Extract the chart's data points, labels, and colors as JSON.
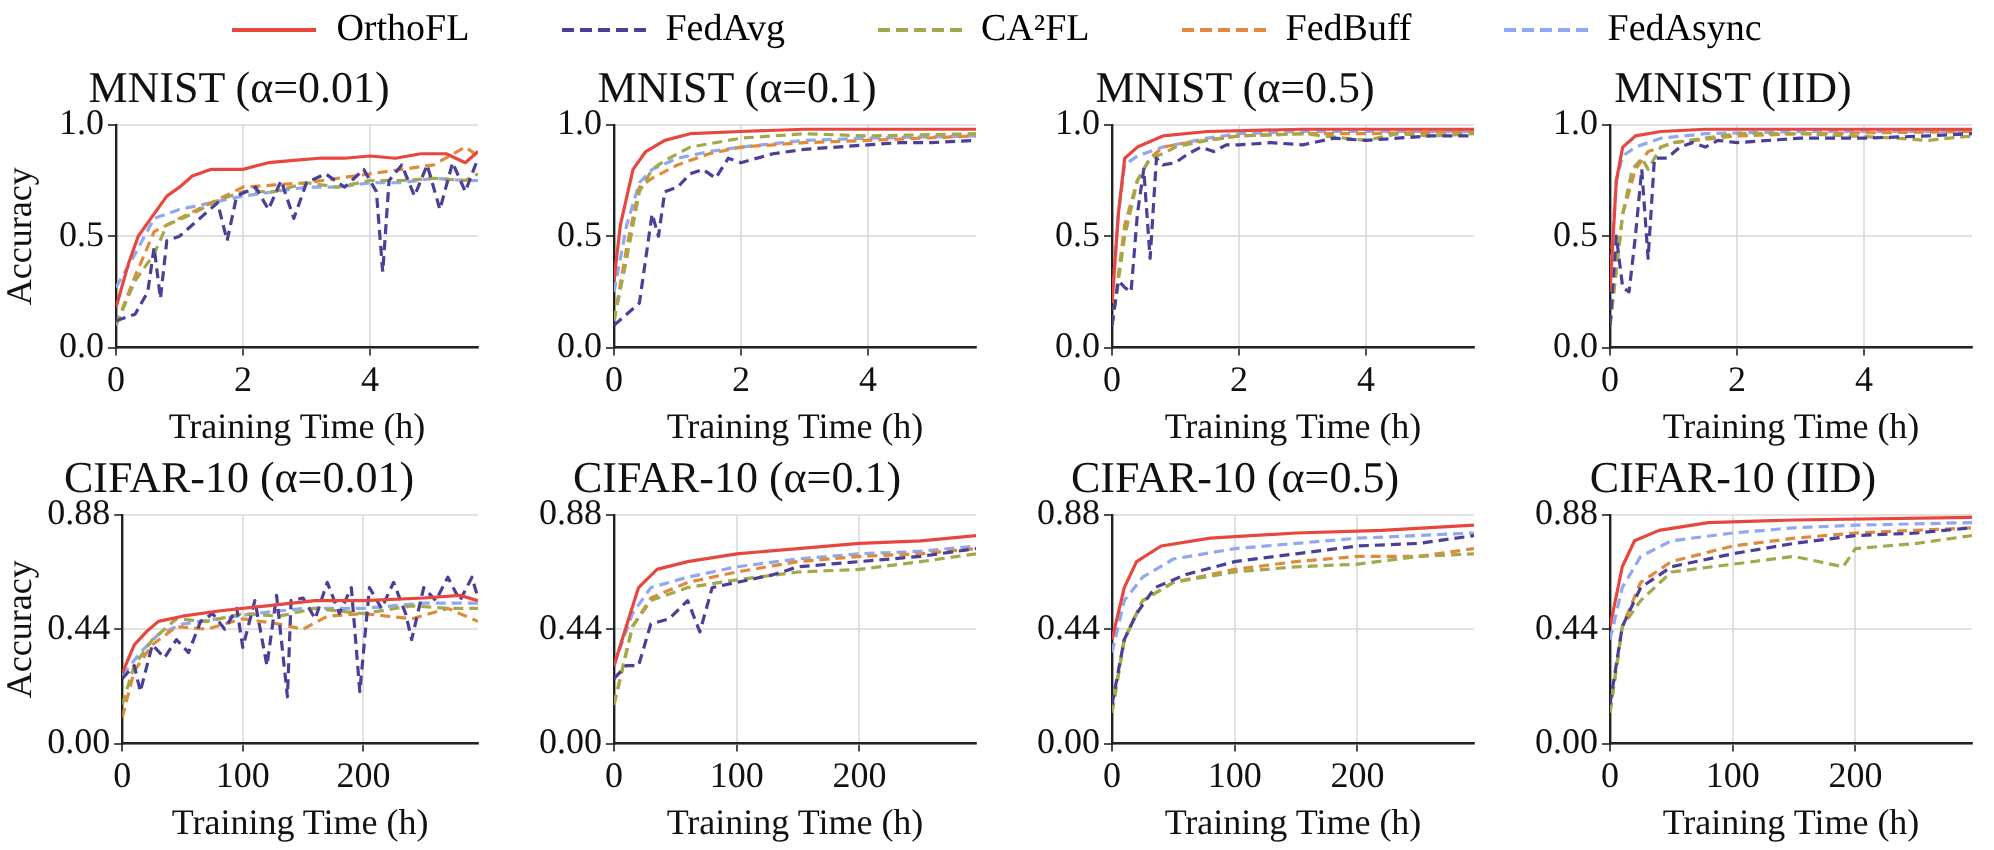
{
  "chart_data": [
    {
      "type": "line",
      "title": "MNIST (α=0.01)",
      "xlabel": "Training Time (h)",
      "ylabel": "Accuracy",
      "xlim": [
        0,
        5.7
      ],
      "xticks": [
        0,
        2,
        4
      ],
      "ylim": [
        0,
        1
      ],
      "yticks": [
        {
          "value": 0,
          "label": "0.0"
        },
        {
          "value": 0.5,
          "label": "0.5"
        },
        {
          "value": 1,
          "label": "1.0"
        }
      ],
      "grid": true,
      "legend": "top",
      "marker": "none",
      "series": [
        {
          "name": "OrthoFL",
          "color": "#e8473f",
          "line_style": "solid",
          "x": [
            0,
            0.2,
            0.35,
            0.6,
            0.8,
            1.0,
            1.2,
            1.5,
            2,
            2.4,
            2.8,
            3.2,
            3.6,
            4.0,
            4.4,
            4.8,
            5.2,
            5.5,
            5.7
          ],
          "values": [
            0.18,
            0.38,
            0.5,
            0.6,
            0.68,
            0.72,
            0.77,
            0.8,
            0.8,
            0.83,
            0.84,
            0.85,
            0.85,
            0.86,
            0.85,
            0.87,
            0.87,
            0.83,
            0.88
          ]
        },
        {
          "name": "FedAvg",
          "color": "#4b3f98",
          "line_style": "dashed",
          "x": [
            0,
            0.3,
            0.5,
            0.6,
            0.7,
            0.8,
            1.0,
            1.2,
            1.4,
            1.6,
            1.75,
            1.9,
            2.2,
            2.4,
            2.6,
            2.8,
            3.0,
            3.3,
            3.6,
            3.9,
            4.1,
            4.2,
            4.3,
            4.5,
            4.7,
            4.9,
            5.1,
            5.3,
            5.5,
            5.7
          ],
          "values": [
            0.12,
            0.15,
            0.25,
            0.45,
            0.22,
            0.48,
            0.5,
            0.55,
            0.6,
            0.65,
            0.48,
            0.68,
            0.72,
            0.62,
            0.75,
            0.58,
            0.74,
            0.78,
            0.72,
            0.8,
            0.7,
            0.34,
            0.75,
            0.82,
            0.68,
            0.82,
            0.62,
            0.83,
            0.7,
            0.85
          ]
        },
        {
          "name": "CA²FL",
          "color": "#a3a84a",
          "line_style": "dashed",
          "x": [
            0,
            0.3,
            0.6,
            0.8,
            1.2,
            1.6,
            2,
            2.5,
            3,
            3.5,
            4,
            4.5,
            5,
            5.5,
            5.7
          ],
          "values": [
            0.1,
            0.3,
            0.42,
            0.55,
            0.6,
            0.66,
            0.7,
            0.7,
            0.74,
            0.72,
            0.75,
            0.75,
            0.76,
            0.75,
            0.78
          ]
        },
        {
          "name": "FedBuff",
          "color": "#e08a3c",
          "line_style": "dashed",
          "x": [
            0,
            0.3,
            0.6,
            1,
            1.5,
            2,
            2.5,
            3,
            3.5,
            4,
            4.5,
            5,
            5.5,
            5.7
          ],
          "values": [
            0.1,
            0.32,
            0.52,
            0.58,
            0.65,
            0.72,
            0.73,
            0.74,
            0.76,
            0.78,
            0.8,
            0.82,
            0.9,
            0.86
          ]
        },
        {
          "name": "FedAsync",
          "color": "#8fa8f0",
          "line_style": "dashed",
          "x": [
            0,
            0.3,
            0.6,
            1,
            1.5,
            2,
            2.5,
            3,
            3.5,
            4,
            4.5,
            5,
            5.5,
            5.7
          ],
          "values": [
            0.27,
            0.42,
            0.58,
            0.62,
            0.65,
            0.68,
            0.7,
            0.72,
            0.72,
            0.74,
            0.74,
            0.76,
            0.75,
            0.75
          ]
        }
      ]
    },
    {
      "type": "line",
      "title": "MNIST (α=0.1)",
      "xlabel": "Training Time (h)",
      "xlim": [
        0,
        5.7
      ],
      "xticks": [
        0,
        2,
        4
      ],
      "ylim": [
        0,
        1
      ],
      "yticks": [
        {
          "value": 0,
          "label": "0.0"
        },
        {
          "value": 0.5,
          "label": "0.5"
        },
        {
          "value": 1,
          "label": "1.0"
        }
      ],
      "grid": true,
      "marker": "none",
      "series": [
        {
          "color": "#e8473f",
          "line_style": "solid",
          "x": [
            0,
            0.1,
            0.3,
            0.5,
            0.8,
            1.2,
            2,
            3,
            4,
            5.7
          ],
          "values": [
            0.3,
            0.55,
            0.8,
            0.88,
            0.93,
            0.96,
            0.97,
            0.98,
            0.98,
            0.98
          ]
        },
        {
          "color": "#4b3f98",
          "line_style": "dashed",
          "x": [
            0,
            0.2,
            0.4,
            0.5,
            0.6,
            0.7,
            0.8,
            1.0,
            1.2,
            1.4,
            1.6,
            1.8,
            2,
            2.5,
            3,
            3.5,
            4,
            4.5,
            5,
            5.7
          ],
          "values": [
            0.1,
            0.15,
            0.2,
            0.4,
            0.6,
            0.5,
            0.7,
            0.72,
            0.78,
            0.8,
            0.76,
            0.85,
            0.83,
            0.87,
            0.89,
            0.9,
            0.91,
            0.92,
            0.92,
            0.93
          ]
        },
        {
          "color": "#a3a84a",
          "line_style": "dashed",
          "x": [
            0,
            0.2,
            0.4,
            0.6,
            0.8,
            1.2,
            2,
            3,
            4,
            5.7
          ],
          "values": [
            0.12,
            0.4,
            0.7,
            0.8,
            0.84,
            0.9,
            0.94,
            0.96,
            0.95,
            0.96
          ]
        },
        {
          "color": "#e08a3c",
          "line_style": "dashed",
          "x": [
            0,
            0.2,
            0.4,
            0.6,
            1,
            1.5,
            2,
            3,
            4,
            5.7
          ],
          "values": [
            0.12,
            0.45,
            0.72,
            0.76,
            0.82,
            0.87,
            0.9,
            0.92,
            0.93,
            0.95
          ]
        },
        {
          "color": "#8fa8f0",
          "line_style": "dashed",
          "x": [
            0,
            0.2,
            0.4,
            0.6,
            1,
            1.5,
            2,
            3,
            4,
            5.7
          ],
          "values": [
            0.25,
            0.55,
            0.74,
            0.8,
            0.85,
            0.88,
            0.9,
            0.93,
            0.94,
            0.95
          ]
        }
      ]
    },
    {
      "type": "line",
      "title": "MNIST (α=0.5)",
      "xlabel": "Training Time (h)",
      "xlim": [
        0,
        5.7
      ],
      "xticks": [
        0,
        2,
        4
      ],
      "ylim": [
        0,
        1
      ],
      "yticks": [
        {
          "value": 0,
          "label": "0.0"
        },
        {
          "value": 0.5,
          "label": "0.5"
        },
        {
          "value": 1,
          "label": "1.0"
        }
      ],
      "grid": true,
      "marker": "none",
      "series": [
        {
          "color": "#e8473f",
          "line_style": "solid",
          "x": [
            0,
            0.1,
            0.2,
            0.4,
            0.8,
            1.5,
            3,
            5.7
          ],
          "values": [
            0.2,
            0.6,
            0.85,
            0.9,
            0.95,
            0.97,
            0.98,
            0.98
          ]
        },
        {
          "color": "#4b3f98",
          "line_style": "dashed",
          "x": [
            0,
            0.1,
            0.2,
            0.3,
            0.4,
            0.5,
            0.6,
            0.7,
            0.8,
            1,
            1.2,
            1.4,
            1.6,
            1.8,
            2,
            2.5,
            3,
            3.5,
            4,
            5,
            5.7
          ],
          "values": [
            0.1,
            0.3,
            0.27,
            0.25,
            0.6,
            0.8,
            0.4,
            0.85,
            0.82,
            0.83,
            0.87,
            0.9,
            0.88,
            0.91,
            0.91,
            0.92,
            0.91,
            0.94,
            0.93,
            0.95,
            0.95
          ]
        },
        {
          "color": "#a3a84a",
          "line_style": "dashed",
          "x": [
            0,
            0.2,
            0.4,
            0.6,
            0.8,
            1,
            1.5,
            2,
            3,
            4,
            4.5,
            5,
            5.7
          ],
          "values": [
            0.1,
            0.5,
            0.75,
            0.85,
            0.87,
            0.9,
            0.93,
            0.95,
            0.96,
            0.93,
            0.96,
            0.95,
            0.96
          ]
        },
        {
          "color": "#e08a3c",
          "line_style": "dashed",
          "x": [
            0,
            0.2,
            0.4,
            0.6,
            0.8,
            1.2,
            2,
            3,
            4,
            5.7
          ],
          "values": [
            0.1,
            0.55,
            0.75,
            0.85,
            0.9,
            0.92,
            0.95,
            0.96,
            0.96,
            0.97
          ]
        },
        {
          "color": "#8fa8f0",
          "line_style": "dashed",
          "x": [
            0,
            0.1,
            0.2,
            0.4,
            0.8,
            1.5,
            2,
            3,
            5.7
          ],
          "values": [
            0.2,
            0.6,
            0.82,
            0.86,
            0.9,
            0.94,
            0.96,
            0.97,
            0.97
          ]
        }
      ]
    },
    {
      "type": "line",
      "title": "MNIST (IID)",
      "xlabel": "Training Time (h)",
      "xlim": [
        0,
        5.7
      ],
      "xticks": [
        0,
        2,
        4
      ],
      "ylim": [
        0,
        1
      ],
      "yticks": [
        {
          "value": 0,
          "label": "0.0"
        },
        {
          "value": 0.5,
          "label": "0.5"
        },
        {
          "value": 1,
          "label": "1.0"
        }
      ],
      "grid": true,
      "marker": "none",
      "series": [
        {
          "color": "#e8473f",
          "line_style": "solid",
          "x": [
            0,
            0.1,
            0.2,
            0.4,
            0.8,
            1.5,
            5.7
          ],
          "values": [
            0.25,
            0.75,
            0.9,
            0.95,
            0.97,
            0.98,
            0.98
          ]
        },
        {
          "color": "#4b3f98",
          "line_style": "dashed",
          "x": [
            0,
            0.1,
            0.2,
            0.3,
            0.4,
            0.5,
            0.6,
            0.7,
            0.9,
            1.1,
            1.3,
            1.5,
            1.7,
            2,
            3,
            4,
            5,
            5.7
          ],
          "values": [
            0.1,
            0.5,
            0.27,
            0.25,
            0.5,
            0.8,
            0.4,
            0.85,
            0.85,
            0.9,
            0.92,
            0.9,
            0.93,
            0.92,
            0.94,
            0.94,
            0.95,
            0.96
          ]
        },
        {
          "color": "#a3a84a",
          "line_style": "dashed",
          "x": [
            0,
            0.2,
            0.35,
            0.5,
            0.6,
            0.8,
            1,
            1.5,
            2,
            3,
            4.5,
            5,
            5.7
          ],
          "values": [
            0.1,
            0.6,
            0.8,
            0.85,
            0.8,
            0.9,
            0.92,
            0.94,
            0.96,
            0.96,
            0.94,
            0.93,
            0.95
          ]
        },
        {
          "color": "#e08a3c",
          "line_style": "dashed",
          "x": [
            0,
            0.2,
            0.4,
            0.6,
            1,
            2,
            3,
            5.7
          ],
          "values": [
            0.1,
            0.6,
            0.8,
            0.88,
            0.92,
            0.95,
            0.96,
            0.97
          ]
        },
        {
          "color": "#8fa8f0",
          "line_style": "dashed",
          "x": [
            0,
            0.1,
            0.2,
            0.4,
            0.8,
            1.5,
            3,
            5.7
          ],
          "values": [
            0.3,
            0.75,
            0.86,
            0.9,
            0.94,
            0.96,
            0.97,
            0.97
          ]
        }
      ]
    },
    {
      "type": "line",
      "title": "CIFAR-10 (α=0.01)",
      "xlabel": "Training Time (h)",
      "ylabel": "Accuracy",
      "xlim": [
        0,
        295
      ],
      "xticks": [
        0,
        100,
        200
      ],
      "ylim": [
        0,
        0.88
      ],
      "yticks": [
        {
          "value": 0,
          "label": "0.00"
        },
        {
          "value": 0.44,
          "label": "0.44"
        },
        {
          "value": 0.88,
          "label": "0.88"
        }
      ],
      "grid": true,
      "marker": "none",
      "series": [
        {
          "color": "#e8473f",
          "line_style": "solid",
          "x": [
            0,
            10,
            20,
            30,
            50,
            80,
            120,
            160,
            200,
            250,
            280,
            295
          ],
          "values": [
            0.27,
            0.38,
            0.43,
            0.47,
            0.49,
            0.51,
            0.53,
            0.55,
            0.55,
            0.56,
            0.57,
            0.55
          ]
        },
        {
          "color": "#4b3f98",
          "line_style": "dashed",
          "x": [
            0,
            10,
            15,
            25,
            35,
            45,
            55,
            65,
            75,
            85,
            95,
            100,
            110,
            120,
            128,
            137,
            140,
            150,
            160,
            170,
            180,
            190,
            197,
            205,
            215,
            225,
            235,
            240,
            250,
            260,
            270,
            280,
            290,
            295
          ],
          "values": [
            0.25,
            0.3,
            0.2,
            0.38,
            0.33,
            0.4,
            0.35,
            0.47,
            0.5,
            0.44,
            0.52,
            0.37,
            0.55,
            0.3,
            0.57,
            0.18,
            0.55,
            0.56,
            0.48,
            0.62,
            0.5,
            0.6,
            0.2,
            0.6,
            0.52,
            0.62,
            0.5,
            0.4,
            0.6,
            0.55,
            0.64,
            0.55,
            0.64,
            0.56
          ]
        },
        {
          "color": "#a3a84a",
          "line_style": "dashed",
          "x": [
            0,
            10,
            25,
            45,
            70,
            100,
            130,
            160,
            200,
            240,
            270,
            295
          ],
          "values": [
            0.15,
            0.3,
            0.4,
            0.48,
            0.47,
            0.5,
            0.49,
            0.52,
            0.5,
            0.53,
            0.52,
            0.52
          ]
        },
        {
          "color": "#e08a3c",
          "line_style": "dashed",
          "x": [
            0,
            10,
            25,
            45,
            70,
            100,
            130,
            150,
            170,
            200,
            240,
            270,
            295
          ],
          "values": [
            0.1,
            0.28,
            0.38,
            0.45,
            0.44,
            0.48,
            0.46,
            0.44,
            0.49,
            0.5,
            0.48,
            0.52,
            0.47
          ]
        },
        {
          "color": "#8fa8f0",
          "line_style": "dashed",
          "x": [
            0,
            15,
            30,
            50,
            80,
            110,
            150,
            200,
            250,
            295
          ],
          "values": [
            0.26,
            0.35,
            0.42,
            0.46,
            0.48,
            0.5,
            0.52,
            0.52,
            0.54,
            0.54
          ]
        }
      ]
    },
    {
      "type": "line",
      "title": "CIFAR-10 (α=0.1)",
      "xlabel": "Training Time (h)",
      "xlim": [
        0,
        295
      ],
      "xticks": [
        0,
        100,
        200
      ],
      "ylim": [
        0,
        0.88
      ],
      "yticks": [
        {
          "value": 0,
          "label": "0.00"
        },
        {
          "value": 0.44,
          "label": "0.44"
        },
        {
          "value": 0.88,
          "label": "0.88"
        }
      ],
      "grid": true,
      "marker": "none",
      "series": [
        {
          "color": "#e8473f",
          "line_style": "solid",
          "x": [
            0,
            10,
            20,
            35,
            60,
            100,
            150,
            200,
            250,
            295
          ],
          "values": [
            0.3,
            0.45,
            0.6,
            0.67,
            0.7,
            0.73,
            0.75,
            0.77,
            0.78,
            0.8
          ]
        },
        {
          "color": "#4b3f98",
          "line_style": "dashed",
          "x": [
            0,
            10,
            20,
            30,
            45,
            60,
            70,
            80,
            100,
            130,
            150,
            200,
            250,
            295
          ],
          "values": [
            0.25,
            0.3,
            0.3,
            0.46,
            0.48,
            0.55,
            0.43,
            0.6,
            0.62,
            0.65,
            0.68,
            0.7,
            0.72,
            0.75
          ]
        },
        {
          "color": "#a3a84a",
          "line_style": "dashed",
          "x": [
            0,
            15,
            30,
            60,
            100,
            150,
            200,
            250,
            295
          ],
          "values": [
            0.15,
            0.45,
            0.55,
            0.6,
            0.63,
            0.66,
            0.67,
            0.7,
            0.73
          ]
        },
        {
          "color": "#e08a3c",
          "line_style": "dashed",
          "x": [
            0,
            15,
            30,
            60,
            100,
            150,
            200,
            250,
            295
          ],
          "values": [
            0.15,
            0.45,
            0.56,
            0.62,
            0.66,
            0.7,
            0.72,
            0.73,
            0.75
          ]
        },
        {
          "color": "#8fa8f0",
          "line_style": "dashed",
          "x": [
            0,
            15,
            30,
            60,
            100,
            150,
            200,
            250,
            295
          ],
          "values": [
            0.3,
            0.5,
            0.6,
            0.64,
            0.68,
            0.71,
            0.73,
            0.74,
            0.76
          ]
        }
      ]
    },
    {
      "type": "line",
      "title": "CIFAR-10 (α=0.5)",
      "xlabel": "Training Time (h)",
      "xlim": [
        0,
        295
      ],
      "xticks": [
        0,
        100,
        200
      ],
      "ylim": [
        0,
        0.88
      ],
      "yticks": [
        {
          "value": 0,
          "label": "0.00"
        },
        {
          "value": 0.44,
          "label": "0.44"
        },
        {
          "value": 0.88,
          "label": "0.88"
        }
      ],
      "grid": true,
      "marker": "none",
      "series": [
        {
          "color": "#e8473f",
          "line_style": "solid",
          "x": [
            0,
            10,
            20,
            40,
            80,
            150,
            220,
            295
          ],
          "values": [
            0.4,
            0.6,
            0.7,
            0.76,
            0.79,
            0.81,
            0.82,
            0.84
          ]
        },
        {
          "color": "#4b3f98",
          "line_style": "dashed",
          "x": [
            0,
            10,
            20,
            35,
            60,
            100,
            150,
            200,
            250,
            295
          ],
          "values": [
            0.15,
            0.4,
            0.5,
            0.6,
            0.65,
            0.7,
            0.73,
            0.76,
            0.77,
            0.8
          ]
        },
        {
          "color": "#a3a84a",
          "line_style": "dashed",
          "x": [
            0,
            10,
            25,
            50,
            100,
            150,
            200,
            250,
            295
          ],
          "values": [
            0.12,
            0.4,
            0.55,
            0.62,
            0.66,
            0.68,
            0.69,
            0.72,
            0.73
          ]
        },
        {
          "color": "#e08a3c",
          "line_style": "dashed",
          "x": [
            0,
            10,
            25,
            50,
            100,
            150,
            200,
            250,
            295
          ],
          "values": [
            0.12,
            0.4,
            0.55,
            0.62,
            0.67,
            0.7,
            0.72,
            0.72,
            0.75
          ]
        },
        {
          "color": "#8fa8f0",
          "line_style": "dashed",
          "x": [
            0,
            10,
            25,
            50,
            100,
            150,
            200,
            295
          ],
          "values": [
            0.35,
            0.55,
            0.64,
            0.71,
            0.75,
            0.77,
            0.79,
            0.81
          ]
        }
      ]
    },
    {
      "type": "line",
      "title": "CIFAR-10 (IID)",
      "xlabel": "Training Time (h)",
      "xlim": [
        0,
        295
      ],
      "xticks": [
        0,
        100,
        200
      ],
      "ylim": [
        0,
        0.88
      ],
      "yticks": [
        {
          "value": 0,
          "label": "0.00"
        },
        {
          "value": 0.44,
          "label": "0.44"
        },
        {
          "value": 0.88,
          "label": "0.88"
        }
      ],
      "grid": true,
      "marker": "none",
      "series": [
        {
          "color": "#e8473f",
          "line_style": "solid",
          "x": [
            0,
            10,
            20,
            40,
            80,
            150,
            295
          ],
          "values": [
            0.45,
            0.68,
            0.78,
            0.82,
            0.85,
            0.86,
            0.87
          ]
        },
        {
          "color": "#4b3f98",
          "line_style": "dashed",
          "x": [
            0,
            10,
            25,
            50,
            100,
            150,
            200,
            250,
            295
          ],
          "values": [
            0.15,
            0.45,
            0.6,
            0.68,
            0.73,
            0.77,
            0.8,
            0.81,
            0.83
          ]
        },
        {
          "color": "#a3a84a",
          "line_style": "dashed",
          "x": [
            0,
            10,
            25,
            50,
            100,
            150,
            190,
            200,
            250,
            295
          ],
          "values": [
            0.12,
            0.45,
            0.55,
            0.66,
            0.69,
            0.72,
            0.68,
            0.75,
            0.77,
            0.8
          ]
        },
        {
          "color": "#e08a3c",
          "line_style": "dashed",
          "x": [
            0,
            10,
            25,
            50,
            100,
            150,
            200,
            295
          ],
          "values": [
            0.12,
            0.45,
            0.62,
            0.7,
            0.76,
            0.79,
            0.81,
            0.83
          ]
        },
        {
          "color": "#8fa8f0",
          "line_style": "dashed",
          "x": [
            0,
            10,
            25,
            50,
            100,
            150,
            200,
            295
          ],
          "values": [
            0.4,
            0.6,
            0.72,
            0.78,
            0.81,
            0.83,
            0.84,
            0.85
          ]
        }
      ]
    }
  ]
}
